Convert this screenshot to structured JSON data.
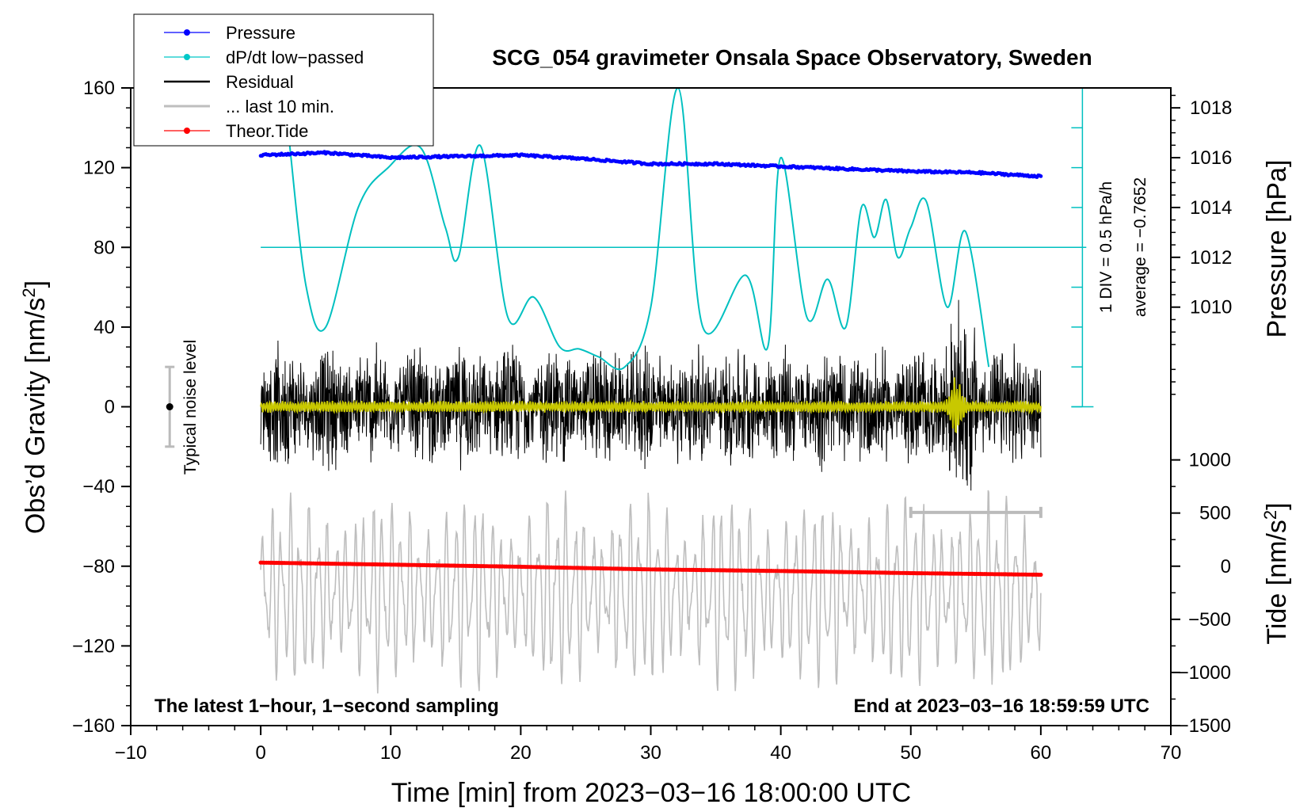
{
  "chart_data": {
    "type": "line",
    "title": "SCG_054 gravimeter Onsala Space Observatory, Sweden",
    "xlabel": "Time [min] from 2023−03−16 18:00:00 UTC",
    "xlim": [
      -10,
      70
    ],
    "x_ticks": [
      -10,
      0,
      10,
      20,
      30,
      40,
      50,
      60,
      70
    ],
    "x_tick_labels": [
      "−10",
      "0",
      "10",
      "20",
      "30",
      "40",
      "50",
      "60",
      "70"
    ],
    "left_axis": {
      "label": "Obs’d Gravity [nm/s²]",
      "label_main": "Obs’d Gravity [nm/s",
      "label_sup": "2",
      "label_close": "]",
      "ylim": [
        -160,
        160
      ],
      "ticks": [
        -160,
        -120,
        -80,
        -40,
        0,
        40,
        80,
        120,
        160
      ],
      "tick_labels": [
        "−160",
        "−120",
        "−80",
        "−40",
        "0",
        "40",
        "80",
        "120",
        "160"
      ]
    },
    "right_pressure_axis": {
      "label": "Pressure [hPa]",
      "ylim_in_gravity_units": [
        0,
        160
      ],
      "pressure_at_y0": 1006.0,
      "hpa_per_gravity_unit": 0.08,
      "ticks": [
        1010,
        1012,
        1014,
        1016,
        1018
      ],
      "tick_labels": [
        "1010",
        "1012",
        "1014",
        "1016",
        "1018"
      ]
    },
    "right_tide_axis": {
      "label": "Tide [nm/s²]",
      "label_main": "Tide [nm/s",
      "label_sup": "2",
      "label_close": "]",
      "tide_at_y_minus160": -1500,
      "tide_per_gravity_unit": 18.75,
      "ticks": [
        -1500,
        -1000,
        -500,
        0,
        500,
        1000
      ],
      "tick_labels": [
        "−1500",
        "−1000",
        "−500",
        "0",
        "500",
        "1000"
      ]
    },
    "dpdt_axis": {
      "note_div": "1 DIV = 0.5 hPa/h",
      "note_avg": "average = −0.7652",
      "baseline_gravity_units": 80
    },
    "noise_bar": {
      "label": "Typical noise level",
      "x_min": -7,
      "center": 0,
      "half_range": 20
    },
    "last10_bar": {
      "x_start": 50,
      "x_end": 60,
      "y": -53
    },
    "series": [
      {
        "name": "Pressure",
        "axis": "pressure",
        "unit": "hPa",
        "x": [
          0,
          5,
          10,
          15,
          20,
          25,
          30,
          35,
          40,
          45,
          50,
          55,
          60
        ],
        "values": [
          1016.1,
          1016.2,
          1016.0,
          1016.05,
          1016.1,
          1015.95,
          1015.75,
          1015.75,
          1015.65,
          1015.55,
          1015.45,
          1015.4,
          1015.25
        ]
      },
      {
        "name": "dP/dt low−passed",
        "axis": "gravity_equivalent",
        "x": [
          2.2,
          3.5,
          5,
          7.5,
          9.8,
          12.3,
          14.2,
          15.2,
          16.9,
          19,
          21,
          23,
          24.5,
          26,
          28,
          30,
          32.1,
          34,
          37.3,
          39,
          40,
          42,
          43.6,
          45,
          46.2,
          47.2,
          48.1,
          49,
          50,
          51.2,
          52.8,
          54.2,
          56
        ],
        "values": [
          133,
          60,
          40,
          100,
          120,
          130,
          90,
          75,
          131,
          45,
          55,
          30,
          29,
          25,
          20,
          50,
          160,
          40,
          66,
          30,
          125,
          45,
          64,
          40,
          100,
          85,
          104,
          75,
          90,
          103,
          50,
          88,
          20
        ]
      },
      {
        "name": "Residual",
        "axis": "gravity",
        "amplitude_nm_s2": 35,
        "x_range": [
          0,
          60
        ]
      },
      {
        "name": "... last 10 min.",
        "axis": "gravity",
        "x_range": [
          0,
          60
        ],
        "amplitude_nm_s2": 45,
        "center": -93
      },
      {
        "name": "Theor.Tide",
        "axis": "tide",
        "unit": "nm/s²",
        "x": [
          0,
          10,
          20,
          30,
          40,
          50,
          60
        ],
        "values": [
          34,
          15,
          -5,
          -30,
          -45,
          -65,
          -80
        ]
      }
    ],
    "yellow_trace": {
      "x_range": [
        0,
        60
      ],
      "amplitude_nm_s2": 3,
      "burst_center_min": 53.5,
      "burst_amplitude_nm_s2": 14
    },
    "legend": [
      {
        "label": "Pressure",
        "color": "#0000ff",
        "marker": true
      },
      {
        "label": "dP/dt low−passed",
        "color": "#00c8c8",
        "marker": true
      },
      {
        "label": "Residual",
        "color": "#000000",
        "marker": false
      },
      {
        "label": "... last 10 min.",
        "color": "#bebebe",
        "marker": false
      },
      {
        "label": "Theor.Tide",
        "color": "#ff0000",
        "marker": true
      }
    ],
    "annotations": {
      "bottom_left": "The latest 1−hour, 1−second sampling",
      "bottom_right": "End at 2023−03−16 18:59:59 UTC"
    },
    "colors": {
      "pressure": "#0000ff",
      "dpdt": "#00c0c0",
      "residual": "#000000",
      "last10": "#bebebe",
      "tide": "#ff0000",
      "yellow": "#c8c800"
    }
  }
}
